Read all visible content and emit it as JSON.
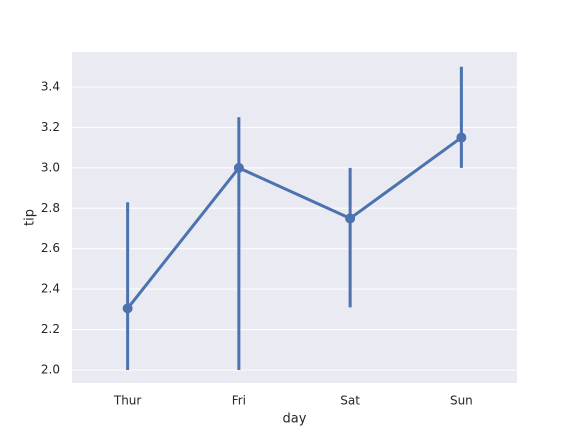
{
  "chart_data": {
    "type": "pointplot",
    "x_label": "day",
    "y_label": "tip",
    "categories": [
      "Thur",
      "Fri",
      "Sat",
      "Sun"
    ],
    "values": [
      2.305,
      3.0,
      2.75,
      3.15
    ],
    "ci_low": [
      2.0,
      2.0,
      2.31,
      3.0
    ],
    "ci_high": [
      2.83,
      3.25,
      3.0,
      3.5
    ],
    "color": "#4c72b0",
    "background": "#eaeaf2",
    "ylim": [
      1.936,
      3.573
    ],
    "yticks": [
      {
        "value": 2.0,
        "label": "2.0"
      },
      2.2,
      2.4,
      2.6,
      2.8,
      {
        "value": 3.0,
        "label": "3.0"
      },
      3.2,
      3.4
    ],
    "grid": true
  }
}
